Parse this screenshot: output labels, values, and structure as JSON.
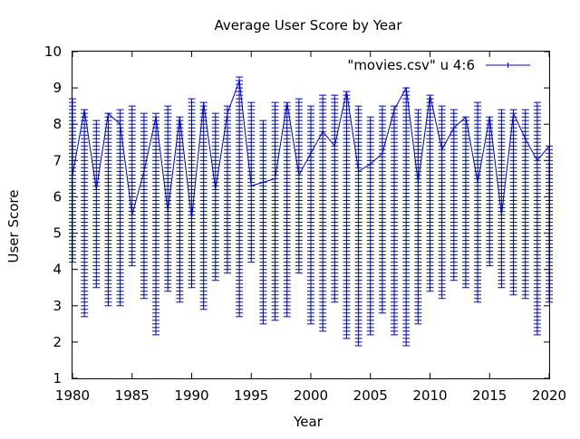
{
  "chart_data": {
    "type": "line",
    "title": "Average User Score by Year",
    "xlabel": "Year",
    "ylabel": "User Score",
    "xlim": [
      1980,
      2020
    ],
    "ylim": [
      1,
      10
    ],
    "x_ticks": [
      1980,
      1985,
      1990,
      1995,
      2000,
      2005,
      2010,
      2015,
      2020
    ],
    "y_ticks": [
      1,
      2,
      3,
      4,
      5,
      6,
      7,
      8,
      9,
      10
    ],
    "legend": {
      "position": "top-right",
      "entries": [
        "\"movies.csv\" u 4:6"
      ]
    },
    "grid": false,
    "series": [
      {
        "name": "\"movies.csv\" u 4:6",
        "color": "#0000cc",
        "x": [
          1980,
          1981,
          1982,
          1983,
          1984,
          1985,
          1986,
          1987,
          1988,
          1989,
          1990,
          1991,
          1992,
          1993,
          1994,
          1995,
          1996,
          1997,
          1998,
          1999,
          2000,
          2001,
          2002,
          2003,
          2004,
          2005,
          2006,
          2007,
          2008,
          2009,
          2010,
          2011,
          2012,
          2013,
          2014,
          2015,
          2016,
          2017,
          2018,
          2019,
          2020
        ],
        "y": [
          6.6,
          8.4,
          6.2,
          8.3,
          8.0,
          5.5,
          6.7,
          8.2,
          5.6,
          8.2,
          5.4,
          8.6,
          6.2,
          8.3,
          9.2,
          6.3,
          6.4,
          6.5,
          8.6,
          6.6,
          7.2,
          7.8,
          7.4,
          8.9,
          6.7,
          6.9,
          7.2,
          8.4,
          9.0,
          6.4,
          8.8,
          7.3,
          7.9,
          8.2,
          6.4,
          8.2,
          5.5,
          8.3,
          7.6,
          7.0,
          7.4
        ],
        "min": [
          4.2,
          2.7,
          3.5,
          3.0,
          3.0,
          4.1,
          3.2,
          2.2,
          3.4,
          3.1,
          3.5,
          2.9,
          3.7,
          3.9,
          2.7,
          4.2,
          2.5,
          2.6,
          2.7,
          3.9,
          2.5,
          2.3,
          3.1,
          2.1,
          1.9,
          2.2,
          2.8,
          2.2,
          1.9,
          2.5,
          3.4,
          3.2,
          3.7,
          3.5,
          3.1,
          4.1,
          3.5,
          3.3,
          3.2,
          2.2,
          3.1
        ],
        "max": [
          8.7,
          8.4,
          8.1,
          8.3,
          8.4,
          8.5,
          8.3,
          8.3,
          8.5,
          8.2,
          8.7,
          8.6,
          8.3,
          8.5,
          9.3,
          8.6,
          8.1,
          8.6,
          8.6,
          8.7,
          8.5,
          8.8,
          8.8,
          8.9,
          8.5,
          8.2,
          8.5,
          8.5,
          9.0,
          8.4,
          8.8,
          8.5,
          8.4,
          8.2,
          8.6,
          8.2,
          8.4,
          8.4,
          8.4,
          8.6,
          7.4
        ]
      }
    ]
  }
}
